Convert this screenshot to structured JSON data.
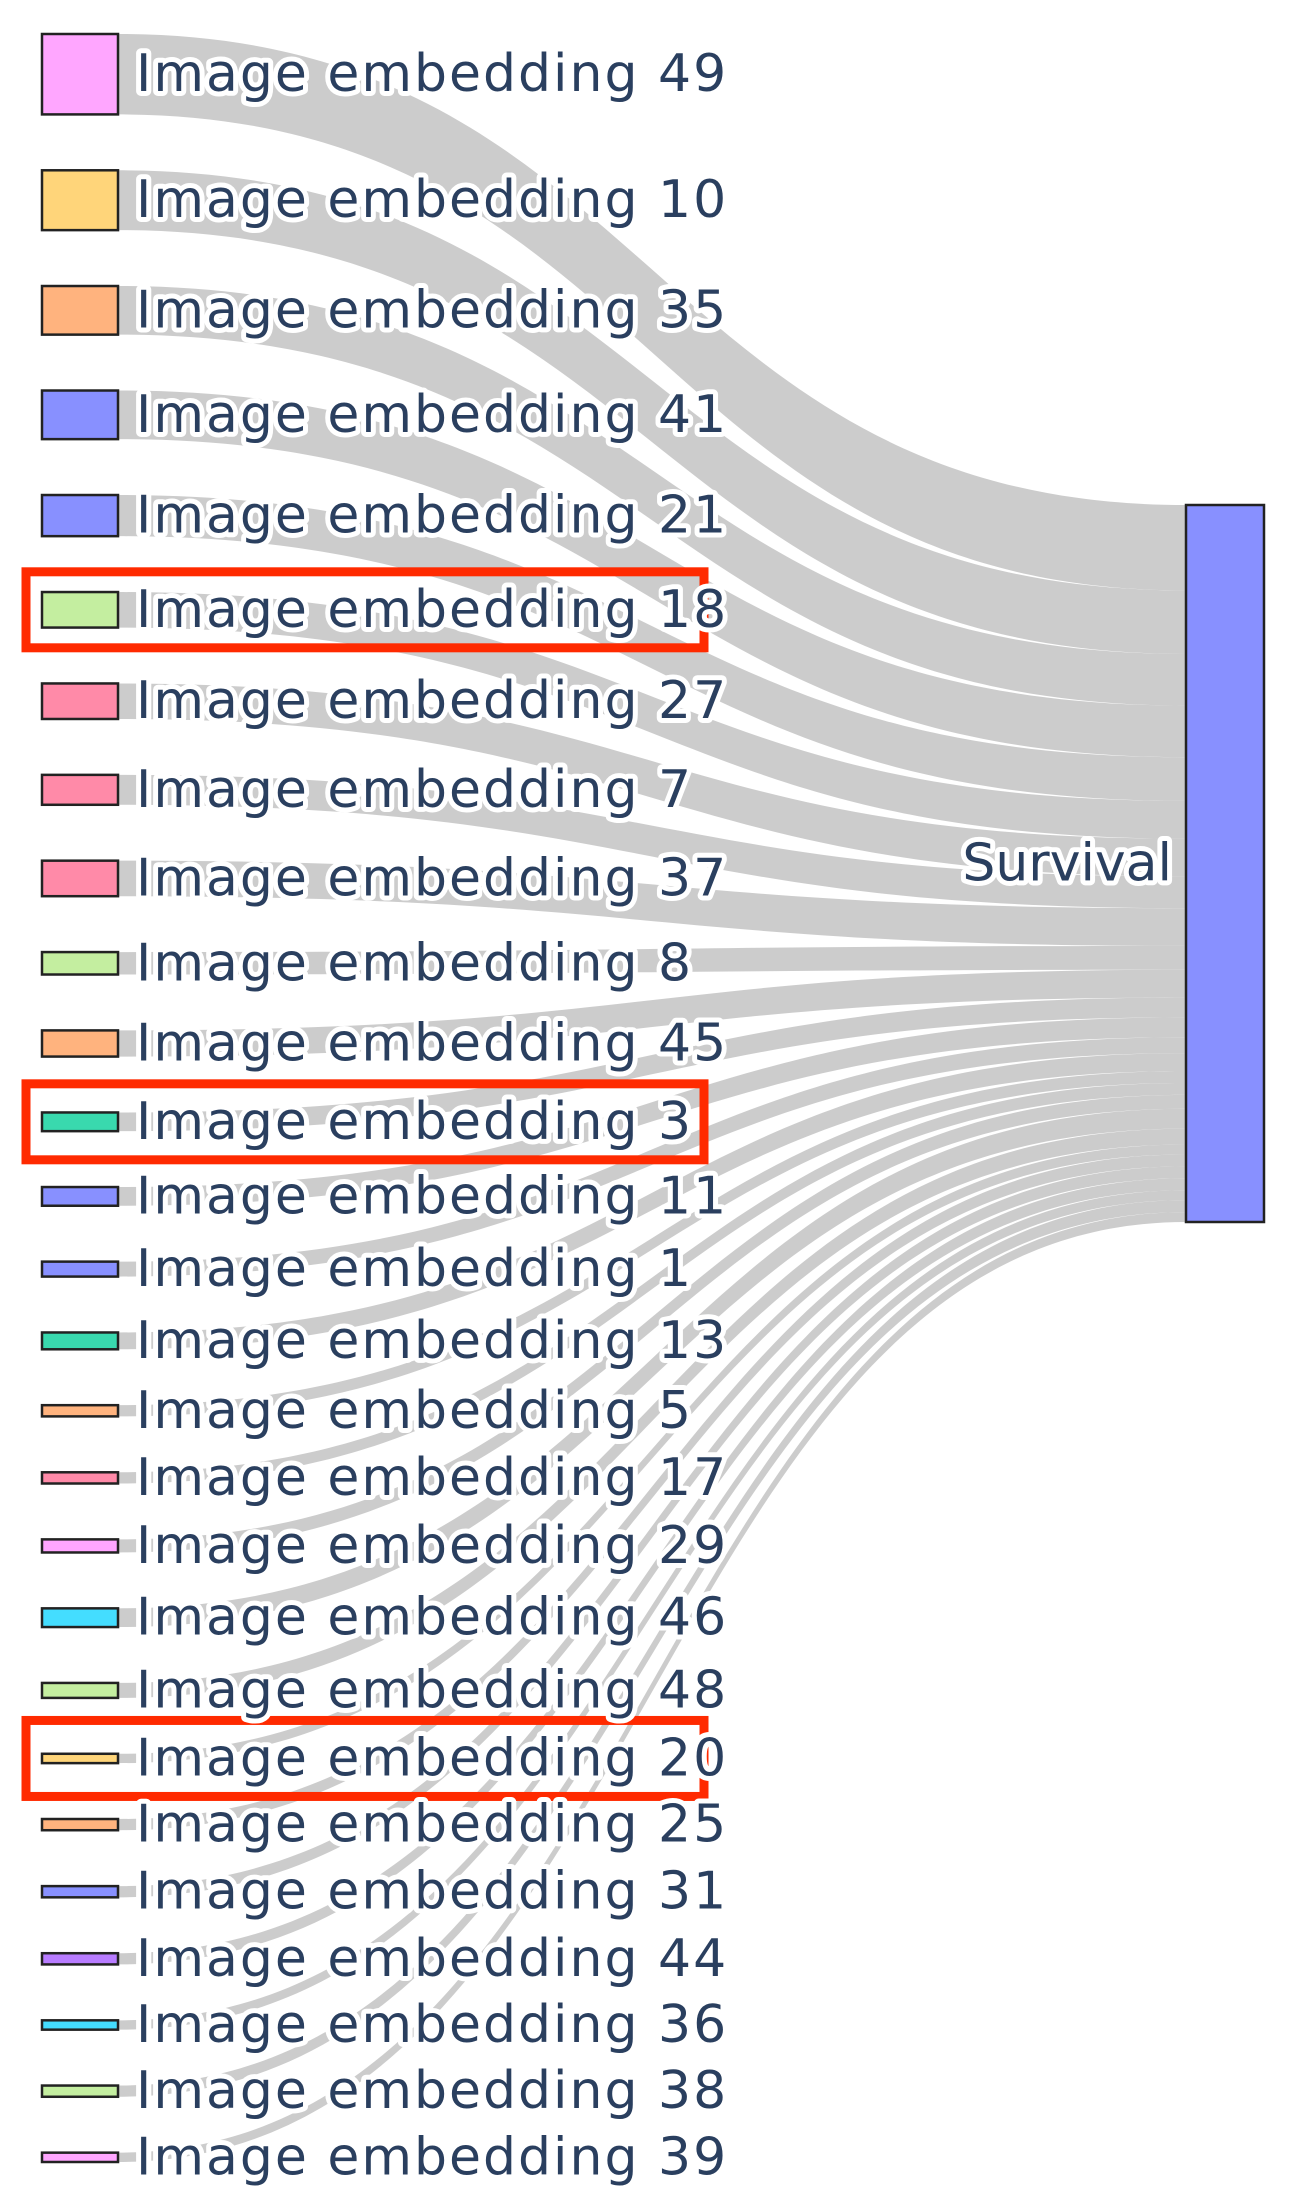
{
  "chart_data": {
    "type": "sankey",
    "target": {
      "label": "Survival",
      "color": "#8890ff"
    },
    "link_color": "#c8c8c8",
    "highlight_color": "#ff2a00",
    "sources": [
      {
        "label": "Image embedding 49",
        "value": 4.3,
        "color": "#ffa6ff"
      },
      {
        "label": "Image embedding 10",
        "value": 3.2,
        "color": "#ffd57a"
      },
      {
        "label": "Image embedding 35",
        "value": 2.6,
        "color": "#ffb37e"
      },
      {
        "label": "Image embedding 41",
        "value": 2.6,
        "color": "#8890ff"
      },
      {
        "label": "Image embedding 21",
        "value": 2.2,
        "color": "#8890ff"
      },
      {
        "label": "Image embedding 18",
        "value": 1.9,
        "color": "#c4eea0",
        "highlighted": true
      },
      {
        "label": "Image embedding 27",
        "value": 1.9,
        "color": "#ff8aa8"
      },
      {
        "label": "Image embedding 7",
        "value": 1.6,
        "color": "#ff8aa8"
      },
      {
        "label": "Image embedding 37",
        "value": 1.9,
        "color": "#ff8aa8"
      },
      {
        "label": "Image embedding 8",
        "value": 1.2,
        "color": "#c4eea0"
      },
      {
        "label": "Image embedding 45",
        "value": 1.4,
        "color": "#ffb37e"
      },
      {
        "label": "Image embedding 3",
        "value": 1.0,
        "color": "#39d9ae",
        "highlighted": true
      },
      {
        "label": "Image embedding 11",
        "value": 1.0,
        "color": "#8890ff"
      },
      {
        "label": "Image embedding 1",
        "value": 0.8,
        "color": "#8890ff"
      },
      {
        "label": "Image embedding 13",
        "value": 0.9,
        "color": "#39d9ae"
      },
      {
        "label": "Image embedding 5",
        "value": 0.6,
        "color": "#ffb37e"
      },
      {
        "label": "Image embedding 17",
        "value": 0.6,
        "color": "#ff8aa8"
      },
      {
        "label": "Image embedding 29",
        "value": 0.7,
        "color": "#ffa6ff"
      },
      {
        "label": "Image embedding 46",
        "value": 1.0,
        "color": "#44ddff"
      },
      {
        "label": "Image embedding 48",
        "value": 0.8,
        "color": "#c4eea0"
      },
      {
        "label": "Image embedding 20",
        "value": 0.5,
        "color": "#ffd57a",
        "highlighted": true
      },
      {
        "label": "Image embedding 25",
        "value": 0.6,
        "color": "#ffb37e"
      },
      {
        "label": "Image embedding 31",
        "value": 0.6,
        "color": "#8890ff"
      },
      {
        "label": "Image embedding 44",
        "value": 0.6,
        "color": "#b87cff"
      },
      {
        "label": "Image embedding 36",
        "value": 0.5,
        "color": "#44ddff"
      },
      {
        "label": "Image embedding 38",
        "value": 0.6,
        "color": "#c4eea0"
      },
      {
        "label": "Image embedding 39",
        "value": 0.5,
        "color": "#ffa6ff"
      }
    ]
  }
}
